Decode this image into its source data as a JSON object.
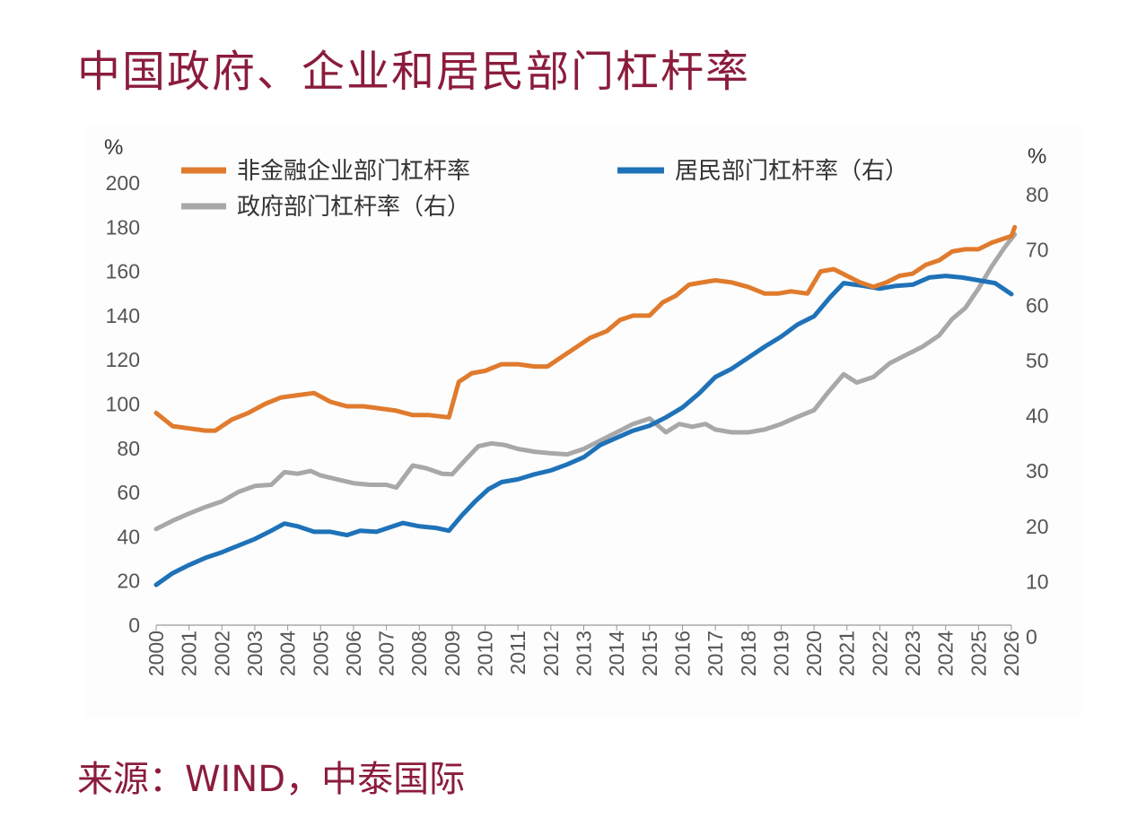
{
  "title": "中国政府、企业和居民部门杠杆率",
  "source": "来源：WIND，中泰国际",
  "chart_data": {
    "type": "line",
    "left_unit": "%",
    "right_unit": "%",
    "y_left": {
      "min": 0,
      "max": 200,
      "ticks": [
        "0",
        "20",
        "40",
        "60",
        "80",
        "100",
        "120",
        "140",
        "160",
        "180",
        "200"
      ]
    },
    "y_right": {
      "min": 0,
      "max": 80,
      "ticks": [
        "0",
        "10",
        "20",
        "30",
        "40",
        "50",
        "60",
        "70",
        "80"
      ]
    },
    "x_ticks": [
      "2000",
      "2001",
      "2002",
      "2003",
      "2004",
      "2005",
      "2006",
      "2007",
      "2008",
      "2009",
      "2010",
      "2011",
      "2012",
      "2013",
      "2014",
      "2015",
      "2016",
      "2017",
      "2018",
      "2019",
      "2020",
      "2021",
      "2022",
      "2023",
      "2024",
      "2025",
      "2026"
    ],
    "x_range": [
      2000,
      2026
    ],
    "legend_position": "top",
    "series": [
      {
        "name": "非金融企业部门杠杆率",
        "axis": "left",
        "color": "#e07b2e",
        "points": [
          [
            2000.0,
            96
          ],
          [
            2000.5,
            90
          ],
          [
            2001.0,
            89
          ],
          [
            2001.5,
            88
          ],
          [
            2001.8,
            88
          ],
          [
            2002.3,
            93
          ],
          [
            2002.8,
            96
          ],
          [
            2003.3,
            100
          ],
          [
            2003.8,
            103
          ],
          [
            2004.3,
            104
          ],
          [
            2004.8,
            105
          ],
          [
            2005.3,
            101
          ],
          [
            2005.8,
            99
          ],
          [
            2006.3,
            99
          ],
          [
            2006.8,
            98
          ],
          [
            2007.3,
            97
          ],
          [
            2007.8,
            95
          ],
          [
            2008.3,
            95
          ],
          [
            2008.9,
            94
          ],
          [
            2009.2,
            110
          ],
          [
            2009.6,
            114
          ],
          [
            2010.0,
            115
          ],
          [
            2010.5,
            118
          ],
          [
            2011.0,
            118
          ],
          [
            2011.5,
            117
          ],
          [
            2011.9,
            117
          ],
          [
            2012.3,
            121
          ],
          [
            2012.8,
            126
          ],
          [
            2013.2,
            130
          ],
          [
            2013.7,
            133
          ],
          [
            2014.1,
            138
          ],
          [
            2014.5,
            140
          ],
          [
            2015.0,
            140
          ],
          [
            2015.4,
            146
          ],
          [
            2015.8,
            149
          ],
          [
            2016.2,
            154
          ],
          [
            2016.6,
            155
          ],
          [
            2017.0,
            156
          ],
          [
            2017.5,
            155
          ],
          [
            2018.0,
            153
          ],
          [
            2018.5,
            150
          ],
          [
            2018.9,
            150
          ],
          [
            2019.3,
            151
          ],
          [
            2019.8,
            150
          ],
          [
            2020.2,
            160
          ],
          [
            2020.6,
            161
          ],
          [
            2021.0,
            158
          ],
          [
            2021.4,
            155
          ],
          [
            2021.8,
            153
          ],
          [
            2022.2,
            155
          ],
          [
            2022.6,
            158
          ],
          [
            2023.0,
            159
          ],
          [
            2023.4,
            163
          ],
          [
            2023.8,
            165
          ],
          [
            2024.2,
            169
          ],
          [
            2024.6,
            170
          ],
          [
            2025.0,
            170
          ],
          [
            2025.4,
            173
          ],
          [
            2025.8,
            175
          ],
          [
            2026.0,
            176
          ],
          [
            2026.1,
            180
          ]
        ]
      },
      {
        "name": "居民部门杠杆率（右）",
        "axis": "right",
        "color": "#1f72b8",
        "points": [
          [
            2000.0,
            9.4
          ],
          [
            2000.5,
            11.5
          ],
          [
            2001.0,
            13.0
          ],
          [
            2001.5,
            14.3
          ],
          [
            2002.0,
            15.3
          ],
          [
            2002.5,
            16.5
          ],
          [
            2003.0,
            17.7
          ],
          [
            2003.5,
            19.2
          ],
          [
            2003.9,
            20.5
          ],
          [
            2004.3,
            20.0
          ],
          [
            2004.8,
            19.0
          ],
          [
            2005.3,
            19.0
          ],
          [
            2005.8,
            18.4
          ],
          [
            2006.2,
            19.2
          ],
          [
            2006.7,
            19.0
          ],
          [
            2007.2,
            20.0
          ],
          [
            2007.5,
            20.6
          ],
          [
            2008.0,
            20.0
          ],
          [
            2008.5,
            19.7
          ],
          [
            2008.9,
            19.2
          ],
          [
            2009.3,
            22.0
          ],
          [
            2009.7,
            24.5
          ],
          [
            2010.1,
            26.7
          ],
          [
            2010.5,
            28.0
          ],
          [
            2011.0,
            28.5
          ],
          [
            2011.5,
            29.4
          ],
          [
            2012.0,
            30.1
          ],
          [
            2012.5,
            31.2
          ],
          [
            2013.0,
            32.5
          ],
          [
            2013.5,
            34.7
          ],
          [
            2014.0,
            36.0
          ],
          [
            2014.5,
            37.3
          ],
          [
            2015.0,
            38.2
          ],
          [
            2015.5,
            39.7
          ],
          [
            2016.0,
            41.5
          ],
          [
            2016.5,
            44.0
          ],
          [
            2017.0,
            47.0
          ],
          [
            2017.5,
            48.5
          ],
          [
            2018.0,
            50.5
          ],
          [
            2018.5,
            52.5
          ],
          [
            2019.0,
            54.3
          ],
          [
            2019.5,
            56.5
          ],
          [
            2020.0,
            58.0
          ],
          [
            2020.5,
            61.5
          ],
          [
            2020.9,
            64.0
          ],
          [
            2021.5,
            63.5
          ],
          [
            2022.0,
            63.0
          ],
          [
            2022.5,
            63.5
          ],
          [
            2023.0,
            63.7
          ],
          [
            2023.5,
            65.0
          ],
          [
            2024.0,
            65.3
          ],
          [
            2024.5,
            65.0
          ],
          [
            2025.0,
            64.5
          ],
          [
            2025.5,
            64.0
          ],
          [
            2025.8,
            62.8
          ],
          [
            2026.0,
            62.0
          ]
        ]
      },
      {
        "name": "政府部门杠杆率（右）",
        "axis": "right",
        "color": "#a8a8a8",
        "points": [
          [
            2000.0,
            19.5
          ],
          [
            2000.5,
            21.0
          ],
          [
            2001.0,
            22.3
          ],
          [
            2001.5,
            23.5
          ],
          [
            2002.0,
            24.5
          ],
          [
            2002.5,
            26.2
          ],
          [
            2003.0,
            27.3
          ],
          [
            2003.5,
            27.5
          ],
          [
            2003.9,
            29.8
          ],
          [
            2004.3,
            29.5
          ],
          [
            2004.7,
            30.0
          ],
          [
            2005.0,
            29.2
          ],
          [
            2005.5,
            28.5
          ],
          [
            2006.0,
            27.8
          ],
          [
            2006.5,
            27.5
          ],
          [
            2007.0,
            27.5
          ],
          [
            2007.3,
            27.0
          ],
          [
            2007.8,
            31.0
          ],
          [
            2008.2,
            30.5
          ],
          [
            2008.7,
            29.5
          ],
          [
            2009.0,
            29.4
          ],
          [
            2009.4,
            32.0
          ],
          [
            2009.8,
            34.5
          ],
          [
            2010.2,
            35.0
          ],
          [
            2010.6,
            34.7
          ],
          [
            2011.0,
            34.0
          ],
          [
            2011.5,
            33.5
          ],
          [
            2012.0,
            33.2
          ],
          [
            2012.5,
            33.0
          ],
          [
            2013.0,
            34.0
          ],
          [
            2013.5,
            35.5
          ],
          [
            2014.0,
            37.0
          ],
          [
            2014.5,
            38.5
          ],
          [
            2015.0,
            39.5
          ],
          [
            2015.5,
            37.0
          ],
          [
            2015.9,
            38.5
          ],
          [
            2016.3,
            38.0
          ],
          [
            2016.7,
            38.5
          ],
          [
            2017.0,
            37.5
          ],
          [
            2017.5,
            37.0
          ],
          [
            2018.0,
            37.0
          ],
          [
            2018.5,
            37.5
          ],
          [
            2019.0,
            38.5
          ],
          [
            2019.5,
            39.8
          ],
          [
            2020.0,
            41.0
          ],
          [
            2020.4,
            44.0
          ],
          [
            2020.9,
            47.5
          ],
          [
            2021.3,
            46.0
          ],
          [
            2021.8,
            47.0
          ],
          [
            2022.3,
            49.5
          ],
          [
            2022.8,
            51.0
          ],
          [
            2023.3,
            52.5
          ],
          [
            2023.8,
            54.5
          ],
          [
            2024.2,
            57.5
          ],
          [
            2024.6,
            59.5
          ],
          [
            2025.0,
            63.0
          ],
          [
            2025.4,
            67.0
          ],
          [
            2025.8,
            70.5
          ],
          [
            2026.1,
            72.8
          ]
        ]
      }
    ]
  }
}
